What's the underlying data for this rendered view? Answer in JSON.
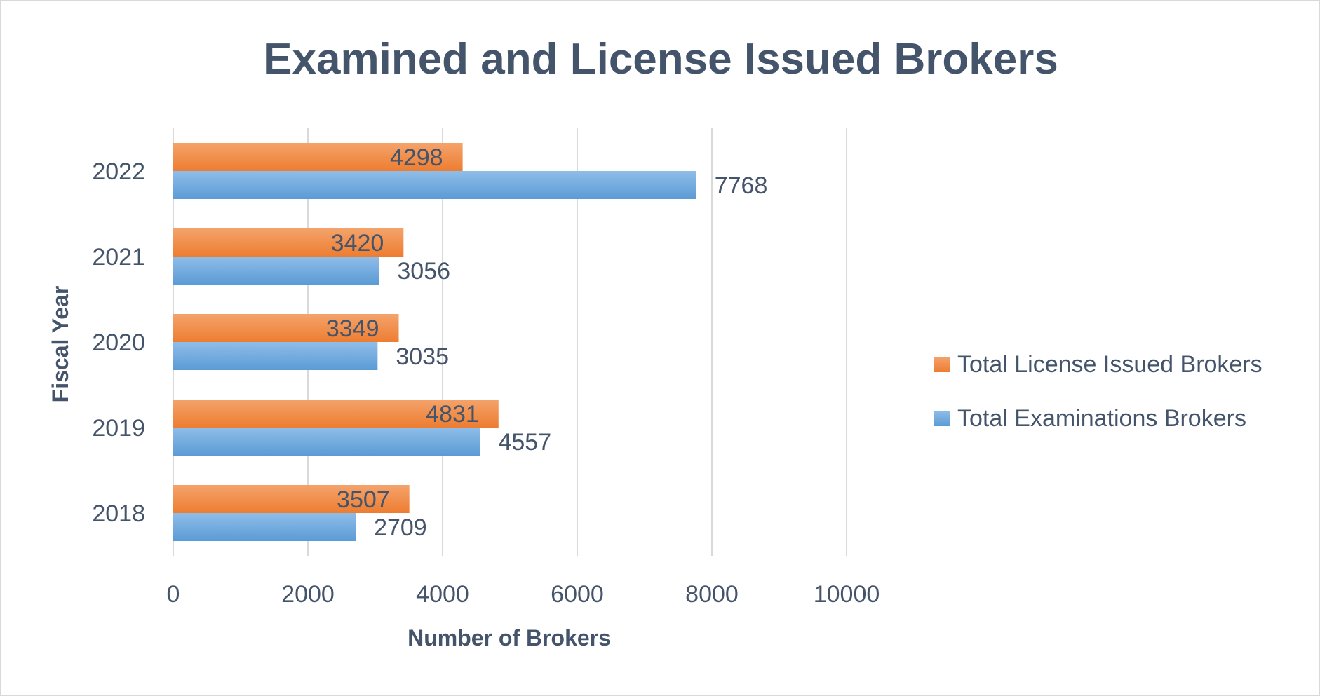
{
  "chart_data": {
    "type": "bar",
    "orientation": "horizontal",
    "title": "Examined and License Issued Brokers",
    "xlabel": "Number of Brokers",
    "ylabel": "Fiscal Year",
    "categories": [
      "2022",
      "2021",
      "2020",
      "2019",
      "2018"
    ],
    "series": [
      {
        "name": "Total License Issued Brokers",
        "color": "#ed7d31",
        "values": [
          4298,
          3420,
          3349,
          4831,
          3507
        ]
      },
      {
        "name": "Total Examinations Brokers",
        "color": "#5b9bd5",
        "values": [
          7768,
          3056,
          3035,
          4557,
          2709
        ]
      }
    ],
    "xlim": [
      0,
      10000
    ],
    "xticks": [
      0,
      2000,
      4000,
      6000,
      8000,
      10000
    ],
    "grid": true,
    "legend_position": "right",
    "data_labels": true
  }
}
